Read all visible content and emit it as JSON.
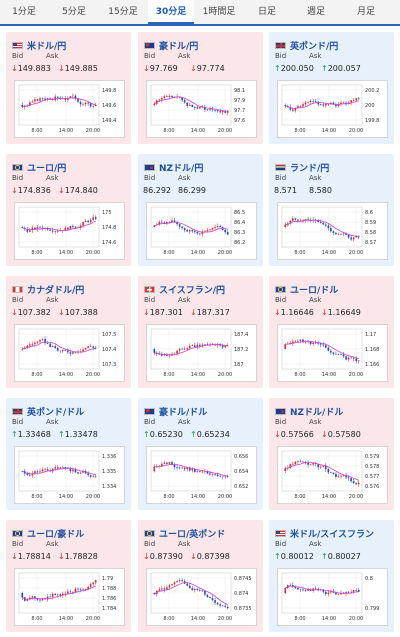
{
  "tabs": [
    {
      "label": "1分足",
      "active": false
    },
    {
      "label": "5分足",
      "active": false
    },
    {
      "label": "15分足",
      "active": false
    },
    {
      "label": "30分足",
      "active": true
    },
    {
      "label": "1時間足",
      "active": false
    },
    {
      "label": "日足",
      "active": false
    },
    {
      "label": "週足",
      "active": false
    },
    {
      "label": "月足",
      "active": false
    }
  ],
  "labels": {
    "bid": "Bid",
    "ask": "Ask"
  },
  "colors": {
    "up_candle": "#d12f2f",
    "down_candle": "#2647c0",
    "moving_average": "#d13fcf",
    "tab_accent": "#2a65b8"
  },
  "cards": [
    {
      "pair": "米ドル/円",
      "flag": "us",
      "bg": "pink",
      "dir": "down",
      "bid": "149.883",
      "ask": "149.885",
      "chart": {
        "ticks": [
          "149.8",
          "149.6",
          "149.4"
        ],
        "x": [
          "8:00",
          "14:00",
          "20:00"
        ]
      }
    },
    {
      "pair": "豪ドル/円",
      "flag": "au",
      "bg": "pink",
      "dir": "down",
      "bid": "97.769",
      "ask": "97.774",
      "chart": {
        "ticks": [
          "98.1",
          "97.9",
          "97.7",
          "97.6"
        ],
        "x": [
          "8:00",
          "14:00",
          "20:00"
        ]
      }
    },
    {
      "pair": "英ポンド/円",
      "flag": "gb",
      "bg": "blue",
      "dir": "up",
      "bid": "200.050",
      "ask": "200.057",
      "chart": {
        "ticks": [
          "200.2",
          "200",
          "199.8"
        ],
        "x": [
          "8:00",
          "14:00",
          "20:00"
        ]
      }
    },
    {
      "pair": "ユーロ/円",
      "flag": "eu",
      "bg": "pink",
      "dir": "down",
      "bid": "174.836",
      "ask": "174.840",
      "chart": {
        "ticks": [
          "175",
          "174.8",
          "174.6"
        ],
        "x": [
          "8:00",
          "14:00",
          "20:00"
        ]
      }
    },
    {
      "pair": "NZドル/円",
      "flag": "nz",
      "bg": "blue",
      "dir": "",
      "bid": "86.292",
      "ask": "86.299",
      "chart": {
        "ticks": [
          "86.5",
          "86.4",
          "86.3",
          "86.2"
        ],
        "x": [
          "8:00",
          "14:00",
          "20:00"
        ]
      }
    },
    {
      "pair": "ランド/円",
      "flag": "za",
      "bg": "blue",
      "dir": "",
      "bid": "8.571",
      "ask": "8.580",
      "chart": {
        "ticks": [
          "8.6",
          "8.59",
          "8.58",
          "8.57"
        ],
        "x": [
          "8:00",
          "14:00",
          "20:00"
        ]
      }
    },
    {
      "pair": "カナダドル/円",
      "flag": "ca",
      "bg": "pink",
      "dir": "down",
      "bid": "107.382",
      "ask": "107.388",
      "chart": {
        "ticks": [
          "107.5",
          "107.4",
          "107.3"
        ],
        "x": [
          "8:00",
          "14:00",
          "20:00"
        ]
      }
    },
    {
      "pair": "スイスフラン/円",
      "flag": "ch",
      "bg": "pink",
      "dir": "down",
      "bid": "187.301",
      "ask": "187.317",
      "chart": {
        "ticks": [
          "187.4",
          "187.2",
          "187"
        ],
        "x": [
          "8:00",
          "14:00",
          "20:00"
        ]
      }
    },
    {
      "pair": "ユーロ/ドル",
      "flag": "eu",
      "bg": "pink",
      "dir": "down",
      "bid": "1.16646",
      "ask": "1.16649",
      "chart": {
        "ticks": [
          "1.17",
          "1.168",
          "1.166"
        ],
        "x": [
          "8:00",
          "14:00",
          "20:00"
        ]
      }
    },
    {
      "pair": "英ポンド/ドル",
      "flag": "gb",
      "bg": "blue",
      "dir": "up",
      "bid": "1.33468",
      "ask": "1.33478",
      "chart": {
        "ticks": [
          "1.336",
          "1.335",
          "1.334"
        ],
        "x": [
          "8:00",
          "14:00",
          "20:00"
        ]
      }
    },
    {
      "pair": "豪ドル/ドル",
      "flag": "au",
      "bg": "blue",
      "dir": "up",
      "bid": "0.65230",
      "ask": "0.65234",
      "chart": {
        "ticks": [
          "0.656",
          "0.654",
          "0.652"
        ],
        "x": [
          "8:00",
          "14:00",
          "20:00"
        ]
      }
    },
    {
      "pair": "NZドル/ドル",
      "flag": "nz",
      "bg": "pink",
      "dir": "down",
      "bid": "0.57566",
      "ask": "0.57580",
      "chart": {
        "ticks": [
          "0.579",
          "0.578",
          "0.577",
          "0.576"
        ],
        "x": [
          "8:00",
          "14:00",
          "20:00"
        ]
      }
    },
    {
      "pair": "ユーロ/豪ドル",
      "flag": "eu",
      "bg": "pink",
      "dir": "down",
      "bid": "1.78814",
      "ask": "1.78828",
      "chart": {
        "ticks": [
          "1.79",
          "1.788",
          "1.786",
          "1.784"
        ],
        "x": [
          "8:00",
          "14:00",
          "20:00"
        ]
      }
    },
    {
      "pair": "ユーロ/英ポンド",
      "flag": "eu",
      "bg": "pink",
      "dir": "down",
      "bid": "0.87390",
      "ask": "0.87398",
      "chart": {
        "ticks": [
          "0.8745",
          "0.874",
          "0.8735"
        ],
        "x": [
          "8:00",
          "14:00",
          "20:00"
        ]
      }
    },
    {
      "pair": "米ドル/スイスフラン",
      "flag": "us",
      "bg": "blue",
      "dir": "up",
      "bid": "0.80012",
      "ask": "0.80027",
      "chart": {
        "ticks": [
          "0.8",
          "0.799"
        ],
        "x": [
          "8:00",
          "14:00",
          "20:00"
        ]
      }
    }
  ]
}
